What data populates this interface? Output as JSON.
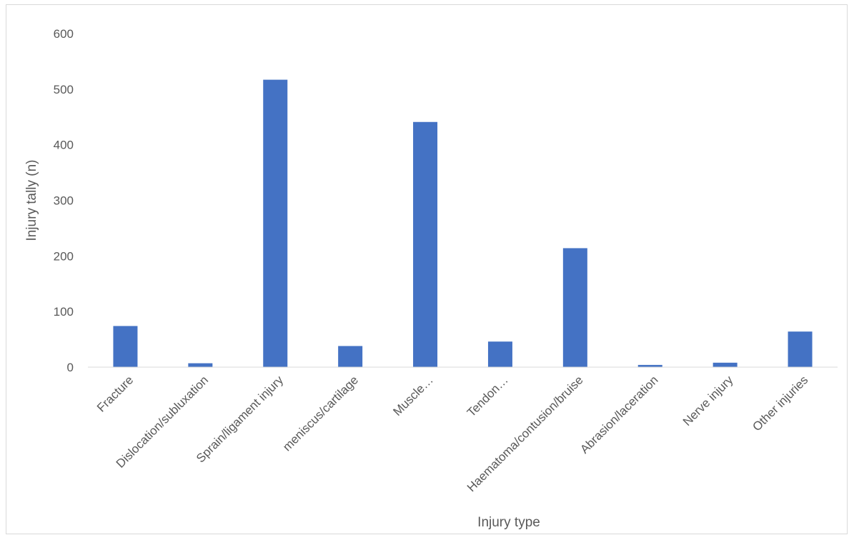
{
  "chart_data": {
    "type": "bar",
    "title": "",
    "xlabel": "Injury type",
    "ylabel": "Injury tally (n)",
    "ylim": [
      0,
      600
    ],
    "yticks": [
      0,
      100,
      200,
      300,
      400,
      500,
      600
    ],
    "grid": false,
    "legend": "none",
    "bar_color": "#4472c4",
    "categories": [
      "Fracture",
      "Dislocation/subluxation",
      "Sprain/ligament injury",
      "meniscus/cartilage",
      "Muscle…",
      "Tendon…",
      "Haematoma/contusion/bruise",
      "Abrasion/laceration",
      "Nerve injury",
      "Other injuries"
    ],
    "values": [
      74,
      7,
      517,
      38,
      441,
      46,
      214,
      4,
      8,
      64
    ]
  }
}
